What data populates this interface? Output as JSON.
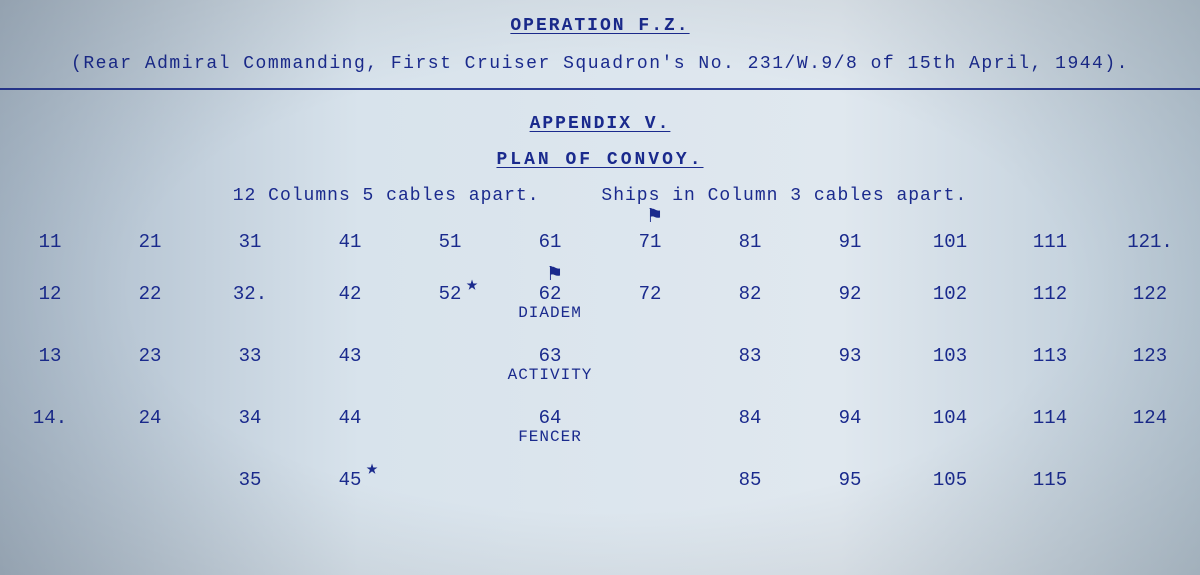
{
  "header": {
    "operation": "OPERATION  F.Z.",
    "source_line": "(Rear Admiral Commanding, First Cruiser Squadron's No. 231/W.9/8 of 15th April, 1944).",
    "appendix": "APPENDIX V.",
    "section": "PLAN   OF   CONVOY.",
    "spacing_left": "12 Columns 5 cables apart.",
    "spacing_right": "Ships in Column 3 cables apart."
  },
  "convoy": {
    "rows": [
      {
        "class": "",
        "cells": [
          {
            "num": "11"
          },
          {
            "num": "21"
          },
          {
            "num": "31"
          },
          {
            "num": "41"
          },
          {
            "num": "51"
          },
          {
            "num": "61"
          },
          {
            "num": "71"
          },
          {
            "num": "81"
          },
          {
            "num": "91"
          },
          {
            "num": "101"
          },
          {
            "num": "111"
          },
          {
            "num": "121."
          }
        ]
      },
      {
        "class": "named",
        "cells": [
          {
            "num": "12"
          },
          {
            "num": "22"
          },
          {
            "num": "32."
          },
          {
            "num": "42"
          },
          {
            "num": "52"
          },
          {
            "num": "62",
            "label": "DIADEM"
          },
          {
            "num": "72"
          },
          {
            "num": "82"
          },
          {
            "num": "92"
          },
          {
            "num": "102"
          },
          {
            "num": "112"
          },
          {
            "num": "122"
          }
        ]
      },
      {
        "class": "named",
        "cells": [
          {
            "num": "13"
          },
          {
            "num": "23"
          },
          {
            "num": "33"
          },
          {
            "num": "43"
          },
          {
            "num": ""
          },
          {
            "num": "63",
            "label": "ACTIVITY"
          },
          {
            "num": ""
          },
          {
            "num": "83"
          },
          {
            "num": "93"
          },
          {
            "num": "103"
          },
          {
            "num": "113"
          },
          {
            "num": "123"
          }
        ]
      },
      {
        "class": "named",
        "cells": [
          {
            "num": "14."
          },
          {
            "num": "24"
          },
          {
            "num": "34"
          },
          {
            "num": "44"
          },
          {
            "num": ""
          },
          {
            "num": "64",
            "label": "FENCER"
          },
          {
            "num": ""
          },
          {
            "num": "84"
          },
          {
            "num": "94"
          },
          {
            "num": "104"
          },
          {
            "num": "114"
          },
          {
            "num": "124"
          }
        ]
      },
      {
        "class": "",
        "cells": [
          {
            "num": ""
          },
          {
            "num": ""
          },
          {
            "num": "35"
          },
          {
            "num": "45"
          },
          {
            "num": ""
          },
          {
            "num": ""
          },
          {
            "num": ""
          },
          {
            "num": "85"
          },
          {
            "num": "95"
          },
          {
            "num": "105"
          },
          {
            "num": "115"
          },
          {
            "num": ""
          }
        ]
      }
    ]
  },
  "symbols": {
    "flag_71": "⚑",
    "flag_62": "⚑",
    "star_52": "★",
    "star_45": "★"
  },
  "colors": {
    "ink": "#1a2a8d",
    "paper_left": "#a8b8c8",
    "paper_mid": "#e0e8ef",
    "paper_right": "#b8c8d5"
  }
}
